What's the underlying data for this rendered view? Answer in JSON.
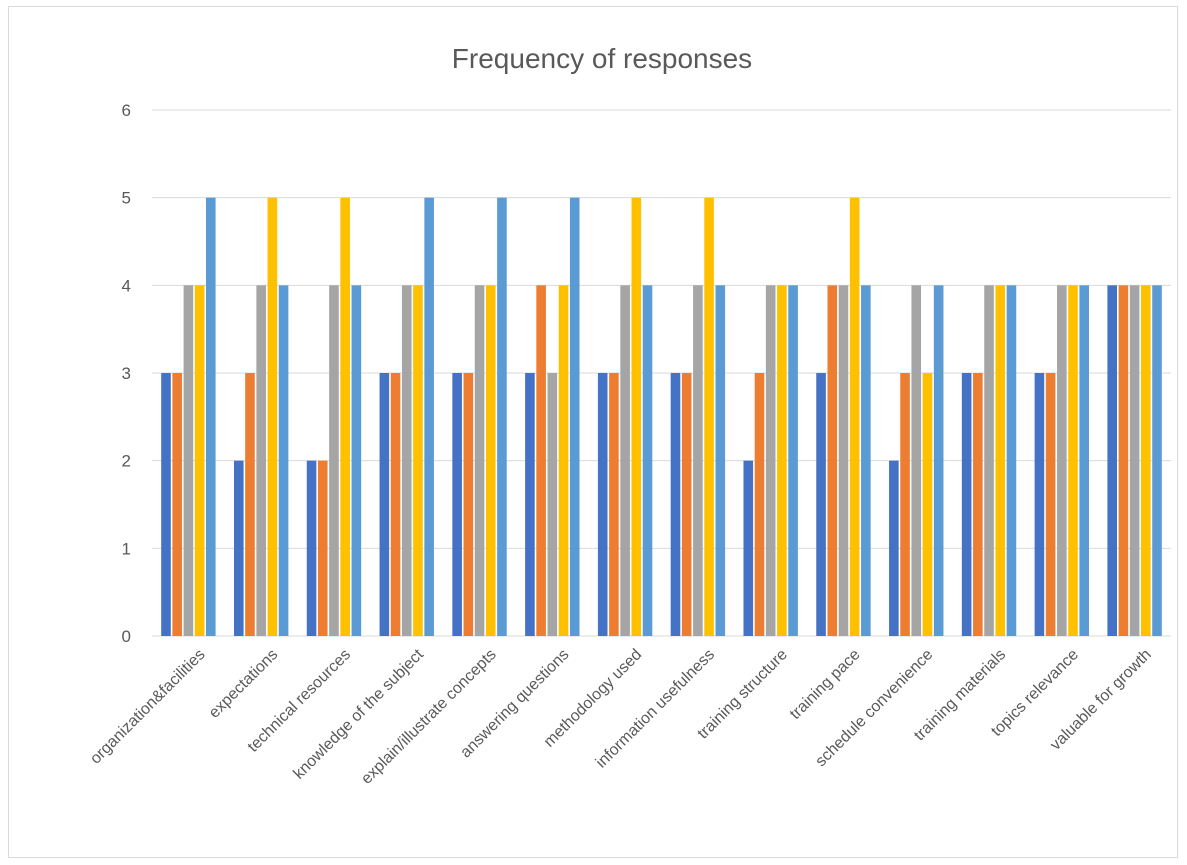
{
  "chart_data": {
    "type": "bar",
    "title": "Frequency of responses",
    "xlabel": "",
    "ylabel": "",
    "ylim": [
      0,
      6
    ],
    "yticks": [
      0,
      1,
      2,
      3,
      4,
      5,
      6
    ],
    "grid": true,
    "legend": "none",
    "categories": [
      "organization&facilities",
      "expectations",
      "technical resources",
      "knowledge of the subject",
      "explain/illustrate concepts",
      "answering questions",
      "methodology used",
      "information usefulness",
      "training structure",
      "training pace",
      "schedule convenience",
      "training materials",
      "topics relevance",
      "valuable for growth"
    ],
    "series": [
      {
        "color": "#4472c4",
        "values": [
          3,
          2,
          2,
          3,
          3,
          3,
          3,
          3,
          2,
          3,
          2,
          3,
          3,
          4
        ]
      },
      {
        "color": "#ed7d31",
        "values": [
          3,
          3,
          2,
          3,
          3,
          4,
          3,
          3,
          3,
          4,
          3,
          3,
          3,
          4
        ]
      },
      {
        "color": "#a5a5a5",
        "values": [
          4,
          4,
          4,
          4,
          4,
          3,
          4,
          4,
          4,
          4,
          4,
          4,
          4,
          4
        ]
      },
      {
        "color": "#ffc000",
        "values": [
          4,
          5,
          5,
          4,
          4,
          4,
          5,
          5,
          4,
          5,
          3,
          4,
          4,
          4
        ]
      },
      {
        "color": "#5b9bd5",
        "values": [
          5,
          4,
          4,
          5,
          5,
          5,
          4,
          4,
          4,
          4,
          4,
          4,
          4,
          4
        ]
      }
    ]
  }
}
